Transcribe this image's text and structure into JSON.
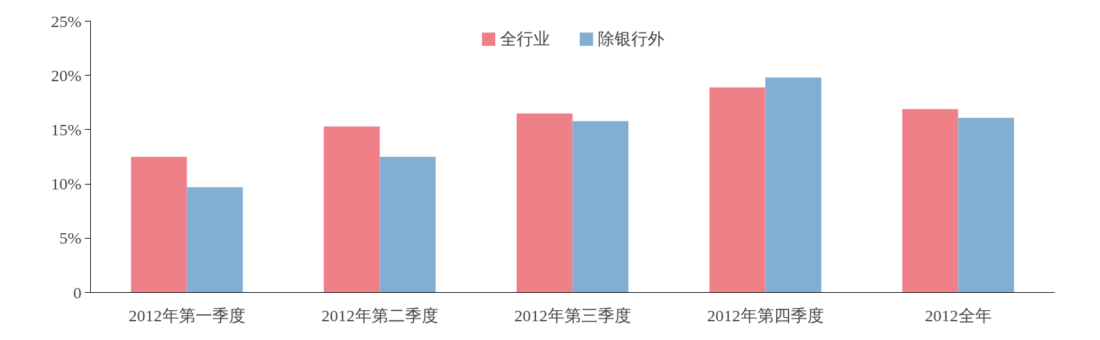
{
  "chart_data": {
    "type": "bar",
    "categories": [
      "2012年第一季度",
      "2012年第二季度",
      "2012年第三季度",
      "2012年第四季度",
      "2012全年"
    ],
    "series": [
      {
        "name": "全行业",
        "color": "#f08088",
        "values": [
          12.5,
          15.3,
          16.5,
          18.9,
          16.9
        ]
      },
      {
        "name": "除银行外",
        "color": "#82aed2",
        "values": [
          9.7,
          12.5,
          15.8,
          19.8,
          16.1
        ]
      }
    ],
    "ylim": [
      0,
      25
    ],
    "yticks": [
      {
        "value": 0,
        "label": "0"
      },
      {
        "value": 5,
        "label": "5%"
      },
      {
        "value": 10,
        "label": "10%"
      },
      {
        "value": 15,
        "label": "15%"
      },
      {
        "value": 20,
        "label": "20%"
      },
      {
        "value": 25,
        "label": "25%"
      }
    ],
    "grid": false,
    "legend": "top"
  }
}
